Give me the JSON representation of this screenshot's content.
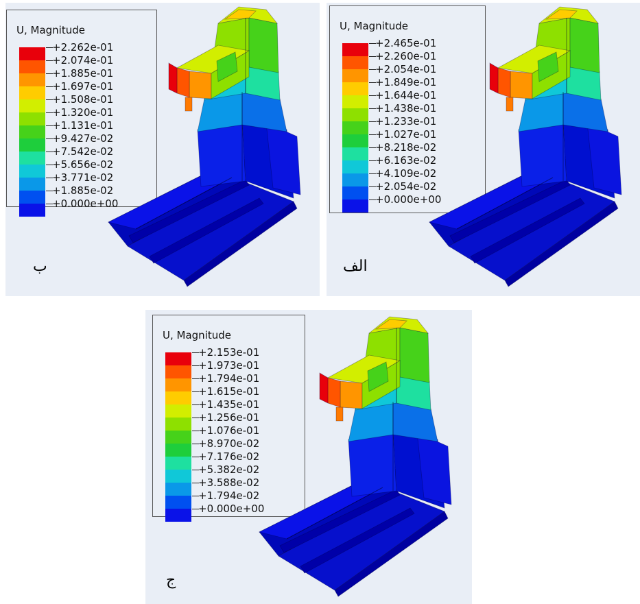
{
  "panels": [
    {
      "id": "panel-b",
      "label": "ب",
      "legend_title": "U, Magnitude",
      "values": [
        "+2.262e-01",
        "+2.074e-01",
        "+1.885e-01",
        "+1.697e-01",
        "+1.508e-01",
        "+1.320e-01",
        "+1.131e-01",
        "+9.427e-02",
        "+7.542e-02",
        "+5.656e-02",
        "+3.771e-02",
        "+1.885e-02",
        "+0.000e+00"
      ]
    },
    {
      "id": "panel-a",
      "label": "الف",
      "legend_title": "U, Magnitude",
      "values": [
        "+2.465e-01",
        "+2.260e-01",
        "+2.054e-01",
        "+1.849e-01",
        "+1.644e-01",
        "+1.438e-01",
        "+1.233e-01",
        "+1.027e-01",
        "+8.218e-02",
        "+6.163e-02",
        "+4.109e-02",
        "+2.054e-02",
        "+0.000e+00"
      ]
    },
    {
      "id": "panel-j",
      "label": "ج",
      "legend_title": "U, Magnitude",
      "values": [
        "+2.153e-01",
        "+1.973e-01",
        "+1.794e-01",
        "+1.615e-01",
        "+1.435e-01",
        "+1.256e-01",
        "+1.076e-01",
        "+8.970e-02",
        "+7.176e-02",
        "+5.382e-02",
        "+3.588e-02",
        "+1.794e-02",
        "+0.000e+00"
      ]
    }
  ],
  "colormap": [
    "#e8000b",
    "#ff5500",
    "#ff9500",
    "#ffcc00",
    "#d2ee00",
    "#8ee000",
    "#46d21a",
    "#1ece3c",
    "#1ee0a0",
    "#10c8d8",
    "#0a98e8",
    "#0050f0",
    "#0a12e8"
  ]
}
